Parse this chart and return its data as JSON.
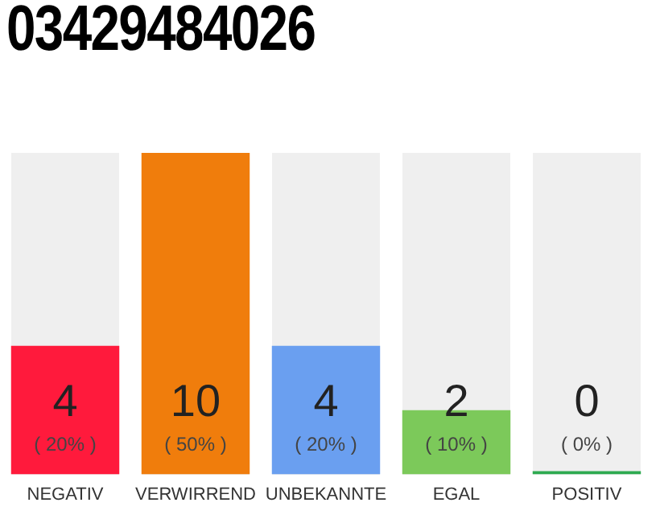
{
  "chart_data": {
    "type": "bar",
    "title": "03429484026",
    "categories": [
      "NEGATIV",
      "VERWIRREND",
      "UNBEKANNTE",
      "EGAL",
      "POSITIV"
    ],
    "values": [
      4,
      10,
      4,
      2,
      0
    ],
    "colors": [
      "#ff1a3c",
      "#f07d0c",
      "#6a9ff0",
      "#7cc95a",
      "#2eaa50"
    ],
    "value_labels": [
      "4\n( 20% )",
      "10\n( 50% )",
      "4\n( 20% )",
      "2\n( 10% )",
      "0\n( 0% )"
    ],
    "grid": false,
    "legend": false
  }
}
